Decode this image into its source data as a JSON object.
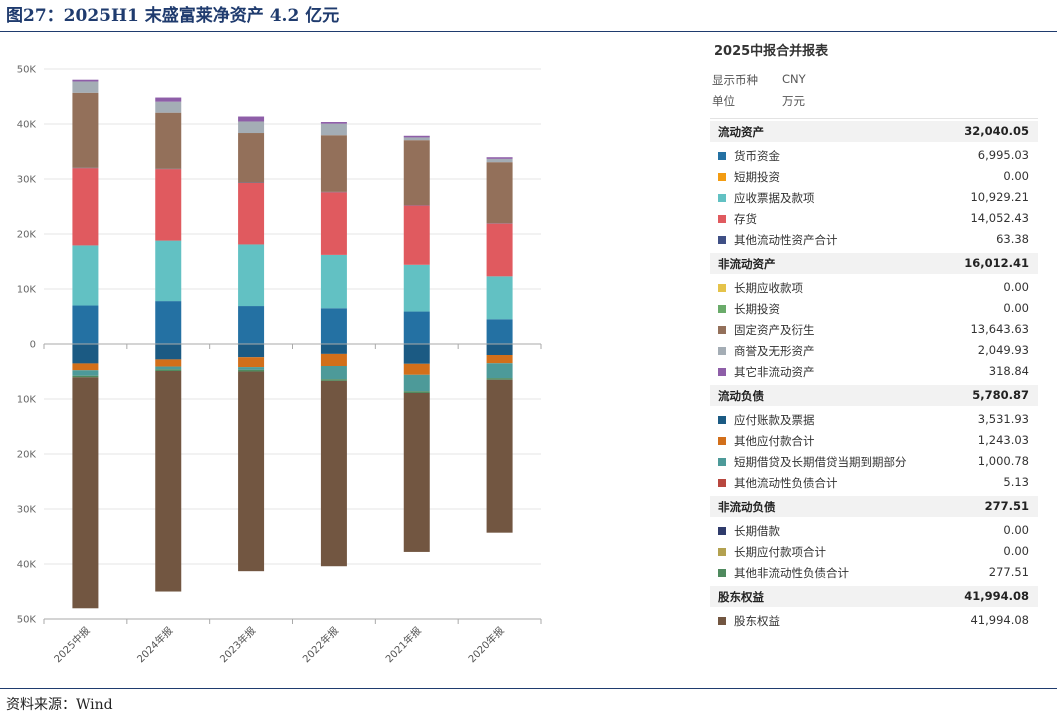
{
  "figure": {
    "title": "图27：2025H1 末盛富莱净资产 4.2 亿元",
    "source": "资料来源：Wind"
  },
  "panel": {
    "title": "2025中报合并报表",
    "meta": [
      {
        "label": "显示币种",
        "value": "CNY"
      },
      {
        "label": "单位",
        "value": "万元"
      }
    ],
    "sections": [
      {
        "label": "流动资产",
        "value": "32,040.05",
        "items": [
          {
            "label": "货币资金",
            "value": "6,995.03",
            "color": "#2471a3"
          },
          {
            "label": "短期投资",
            "value": "0.00",
            "color": "#f39c12"
          },
          {
            "label": "应收票据及款项",
            "value": "10,929.21",
            "color": "#62c1c3"
          },
          {
            "label": "存货",
            "value": "14,052.43",
            "color": "#e05a5f"
          },
          {
            "label": "其他流动性资产合计",
            "value": "63.38",
            "color": "#3f4f85"
          }
        ]
      },
      {
        "label": "非流动资产",
        "value": "16,012.41",
        "items": [
          {
            "label": "长期应收款项",
            "value": "0.00",
            "color": "#e5c34a"
          },
          {
            "label": "长期投资",
            "value": "0.00",
            "color": "#6aab6a"
          },
          {
            "label": "固定资产及衍生",
            "value": "13,643.63",
            "color": "#93705a"
          },
          {
            "label": "商誉及无形资产",
            "value": "2,049.93",
            "color": "#a4adb5"
          },
          {
            "label": "其它非流动资产",
            "value": "318.84",
            "color": "#8e5ea8"
          }
        ]
      },
      {
        "label": "流动负债",
        "value": "5,780.87",
        "items": [
          {
            "label": "应付账款及票据",
            "value": "3,531.93",
            "color": "#1b5a83"
          },
          {
            "label": "其他应付款合计",
            "value": "1,243.03",
            "color": "#d26f1a"
          },
          {
            "label": "短期借贷及长期借贷当期到期部分",
            "value": "1,000.78",
            "color": "#4d9a99"
          },
          {
            "label": "其他流动性负债合计",
            "value": "5.13",
            "color": "#b8473f"
          }
        ]
      },
      {
        "label": "非流动负债",
        "value": "277.51",
        "items": [
          {
            "label": "长期借款",
            "value": "0.00",
            "color": "#2f3b6b"
          },
          {
            "label": "长期应付款项合计",
            "value": "0.00",
            "color": "#b3a150"
          },
          {
            "label": "其他非流动性负债合计",
            "value": "277.51",
            "color": "#4f8a5e"
          }
        ]
      },
      {
        "label": "股东权益",
        "value": "41,994.08",
        "items": [
          {
            "label": "股东权益",
            "value": "41,994.08",
            "color": "#725641"
          }
        ]
      }
    ]
  },
  "chart_data": {
    "type": "bar",
    "stacked": true,
    "categories": [
      "2025中报",
      "2024年报",
      "2023年报",
      "2022年报",
      "2021年报",
      "2020年报"
    ],
    "ylim": [
      -50000,
      50000
    ],
    "yticks": [
      50000,
      40000,
      30000,
      20000,
      10000,
      0,
      -10000,
      -20000,
      -30000,
      -40000,
      -50000
    ],
    "ytick_labels": [
      "50K",
      "40K",
      "30K",
      "20K",
      "10K",
      "0",
      "10K",
      "20K",
      "30K",
      "40K",
      "50K"
    ],
    "grid": true,
    "positive_series": [
      {
        "name": "货币资金",
        "color": "#2471a3",
        "values": [
          6995,
          7800,
          6900,
          6500,
          5900,
          4500
        ]
      },
      {
        "name": "短期投资",
        "color": "#f39c12",
        "values": [
          0,
          0,
          0,
          0,
          0,
          0
        ]
      },
      {
        "name": "应收票据及款项",
        "color": "#62c1c3",
        "values": [
          10929,
          11000,
          11200,
          9700,
          8500,
          7800
        ]
      },
      {
        "name": "存货",
        "color": "#e05a5f",
        "values": [
          14052,
          13000,
          11200,
          11400,
          10800,
          9600
        ]
      },
      {
        "name": "其他流动性资产合计",
        "color": "#3f4f85",
        "values": [
          63,
          60,
          60,
          60,
          60,
          60
        ]
      },
      {
        "name": "长期应收款项",
        "color": "#e5c34a",
        "values": [
          0,
          0,
          0,
          0,
          0,
          0
        ]
      },
      {
        "name": "长期投资",
        "color": "#6aab6a",
        "values": [
          0,
          0,
          0,
          0,
          0,
          0
        ]
      },
      {
        "name": "固定资产及衍生",
        "color": "#93705a",
        "values": [
          13644,
          10200,
          9000,
          10300,
          11800,
          11100
        ]
      },
      {
        "name": "商誉及无形资产",
        "color": "#a4adb5",
        "values": [
          2050,
          2000,
          2100,
          2100,
          500,
          600
        ]
      },
      {
        "name": "其它非流动资产",
        "color": "#8e5ea8",
        "values": [
          319,
          750,
          900,
          300,
          300,
          300
        ]
      }
    ],
    "negative_series": [
      {
        "name": "应付账款及票据",
        "color": "#1b5a83",
        "values": [
          3532,
          2800,
          2400,
          1800,
          3600,
          2000
        ]
      },
      {
        "name": "其他应付款合计",
        "color": "#d26f1a",
        "values": [
          1243,
          1300,
          1800,
          2200,
          2000,
          1500
        ]
      },
      {
        "name": "短期借贷及长期借贷当期到期部分",
        "color": "#4d9a99",
        "values": [
          1001,
          500,
          500,
          2400,
          3000,
          2700
        ]
      },
      {
        "name": "其他流动性负债合计",
        "color": "#b8473f",
        "values": [
          5,
          5,
          5,
          5,
          5,
          5
        ]
      },
      {
        "name": "长期借款",
        "color": "#2f3b6b",
        "values": [
          0,
          0,
          0,
          0,
          0,
          0
        ]
      },
      {
        "name": "长期应付款项合计",
        "color": "#b3a150",
        "values": [
          0,
          0,
          0,
          0,
          0,
          0
        ]
      },
      {
        "name": "其他非流动性负债合计",
        "color": "#4f8a5e",
        "values": [
          278,
          300,
          300,
          300,
          300,
          300
        ]
      },
      {
        "name": "股东权益",
        "color": "#725641",
        "values": [
          41994,
          40100,
          36300,
          33700,
          28900,
          27800
        ]
      }
    ]
  }
}
